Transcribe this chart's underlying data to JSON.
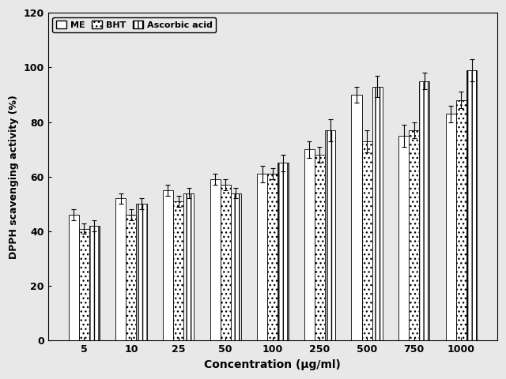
{
  "concentrations": [
    "5",
    "10",
    "25",
    "50",
    "100",
    "250",
    "500",
    "750",
    "1000"
  ],
  "ME_values": [
    46,
    52,
    55,
    59,
    61,
    70,
    90,
    75,
    83
  ],
  "BHT_values": [
    41,
    46,
    51,
    57,
    61,
    68,
    73,
    77,
    88
  ],
  "AA_values": [
    42,
    50,
    54,
    54,
    65,
    77,
    93,
    95,
    99
  ],
  "ME_errors": [
    2,
    2,
    2,
    2,
    3,
    3,
    3,
    4,
    3
  ],
  "BHT_errors": [
    2,
    2,
    2,
    2,
    2,
    3,
    4,
    3,
    3
  ],
  "AA_errors": [
    2,
    2,
    2,
    2,
    3,
    4,
    4,
    3,
    4
  ],
  "ylabel": "DPPH scavenging activity (%)",
  "xlabel": "Concentration (μg/ml)",
  "ylim": [
    0,
    120
  ],
  "yticks": [
    0,
    20,
    40,
    60,
    80,
    100,
    120
  ],
  "legend_labels": [
    "ME",
    "BHT",
    "Ascorbic acid"
  ],
  "bar_width": 0.22,
  "figsize": [
    6.4,
    4.8
  ],
  "dpi": 100
}
